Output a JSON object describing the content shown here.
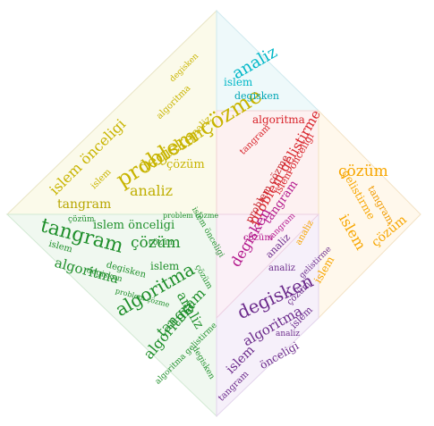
{
  "colors": {
    "yellow": "#c8b400",
    "cyan": "#00b7c7",
    "red": "#d8232a",
    "orange": "#f7a600",
    "green": "#1f8f2b",
    "purple": "#6b2a8b",
    "magenta": "#b3188c"
  },
  "words": {
    "w01": "problem çözme",
    "w02": "degisken",
    "w03": "analiz",
    "w04": "islem önceligi",
    "w05": "çözüm",
    "w06": "tangram",
    "w07": "algoritma",
    "w08": "analiz",
    "w09": "islem",
    "w10": "degisken",
    "w11": "problem gelistirme",
    "w12": "algoritma",
    "w13": "çözüm",
    "w14": "islem",
    "w15": "degisken",
    "w16": "tangram",
    "w17": "algoritma",
    "w18": "çözüm",
    "w19": "tangram",
    "w20": "islem önceligi",
    "w21": "algoritma",
    "w22": "analiz",
    "w23": "tangram",
    "w24": "degisken",
    "w25": "algoritma",
    "w26": "islem",
    "w27": "islem",
    "w28": "önceligi",
    "w29": "çözüm",
    "w30": "islem",
    "w31": "çözüm",
    "w32": "problem çözme",
    "w33": "analiz",
    "w34": "degisken",
    "w35": "tangram",
    "w36": "islem önceligi",
    "w37": "problem çözme",
    "w38": "gelistirme",
    "w39": "tangram",
    "w40": "analiz",
    "w41": "çözüm",
    "w42": "problem çözme",
    "w43": "degisken",
    "w44": "islem önceligi",
    "w45": "çözüm",
    "w46": "tangram",
    "w47": "analiz",
    "w48": "gelistirme",
    "w49": "degisken",
    "w50": "islem",
    "w51": "algoritma",
    "w52": "analiz",
    "w53": "çözüm",
    "w54": "islem",
    "w55": "tangram",
    "w56": "analiz",
    "w57": "algoritma gelistirme",
    "w58": "degisken",
    "w59": "çözüm",
    "w60": "islem"
  }
}
